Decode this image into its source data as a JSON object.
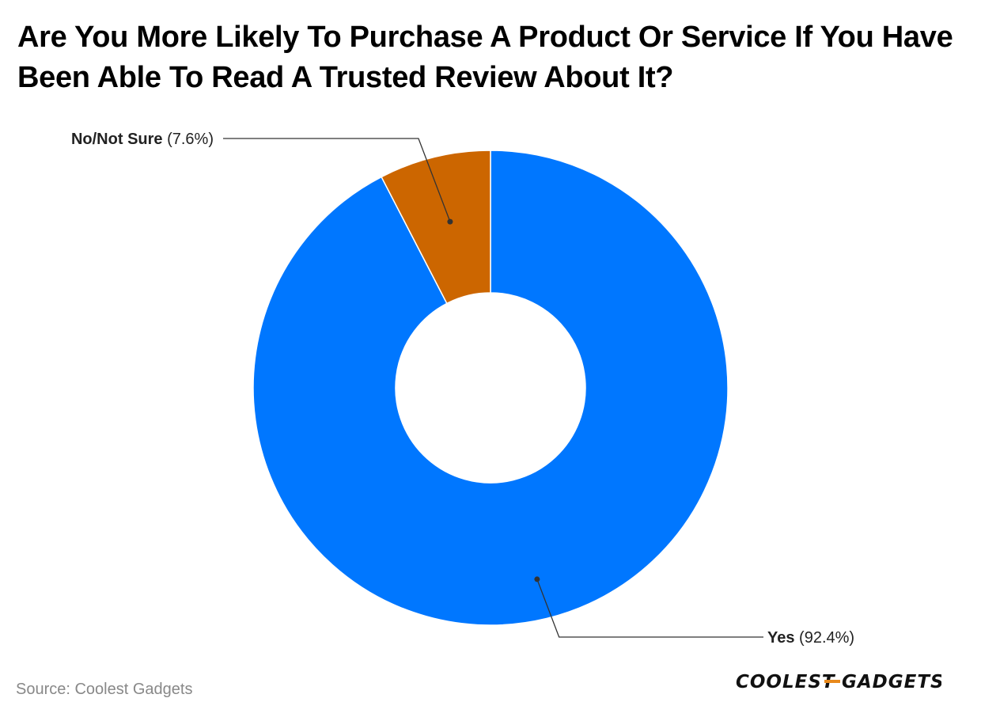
{
  "title": "Are You More Likely To Purchase A Product Or Service If You Have Been Able To Read A Trusted Review About It?",
  "source": "Source: Coolest Gadgets",
  "logo": {
    "left_text": "COOLEST",
    "right_text": "GADGETS"
  },
  "colors": {
    "yes": "#0077ff",
    "no": "#cc6600",
    "logo_accent": "#e8891c"
  },
  "chart_data": {
    "type": "pie",
    "donut": true,
    "title": "Are You More Likely To Purchase A Product Or Service If You Have Been Able To Read A Trusted Review About It?",
    "slices": [
      {
        "label": "Yes",
        "value": 92.4,
        "value_label": "(92.4%)",
        "color": "#0077ff"
      },
      {
        "label": "No/Not Sure",
        "value": 7.6,
        "value_label": "(7.6%)",
        "color": "#cc6600"
      }
    ]
  }
}
